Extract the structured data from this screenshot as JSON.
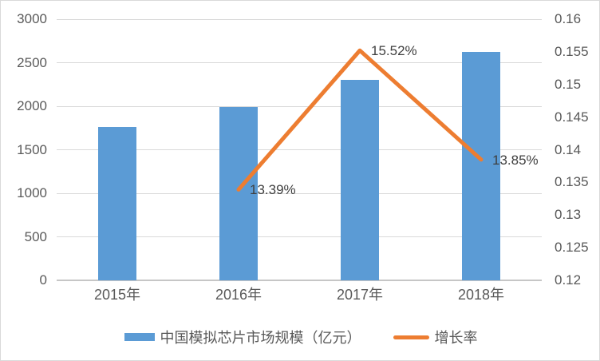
{
  "chart_data": {
    "type": "combo-bar-line",
    "title": "",
    "categories": [
      "2015年",
      "2016年",
      "2017年",
      "2018年"
    ],
    "series": [
      {
        "name": "中国模拟芯片市场规模（亿元）",
        "type": "bar",
        "axis": "left",
        "color": "#5B9BD5",
        "values": [
          1760,
          1995,
          2305,
          2624
        ]
      },
      {
        "name": "增长率",
        "type": "line",
        "axis": "right",
        "color": "#ED7D31",
        "values": [
          null,
          0.1339,
          0.1552,
          0.1385
        ],
        "data_labels": [
          null,
          "13.39%",
          "15.52%",
          "13.85%"
        ]
      }
    ],
    "left_axis": {
      "min": 0,
      "max": 3000,
      "step": 500,
      "tick_labels": [
        "0",
        "500",
        "1000",
        "1500",
        "2000",
        "2500",
        "3000"
      ]
    },
    "right_axis": {
      "min": 0.12,
      "max": 0.16,
      "step": 0.005,
      "tick_labels": [
        "0.12",
        "0.125",
        "0.13",
        "0.135",
        "0.14",
        "0.145",
        "0.15",
        "0.155",
        "0.16"
      ]
    },
    "grid": "horizontal-left-axis-only",
    "legend_position": "bottom"
  },
  "colors": {
    "bar": "#5B9BD5",
    "line": "#ED7D31",
    "gridline": "#D9D9D9",
    "axis_line": "#C6C6C6",
    "tick_text": "#595959",
    "data_label_text": "#3F3F3F",
    "border": "#D9D9D9",
    "background": "#FFFFFF"
  }
}
